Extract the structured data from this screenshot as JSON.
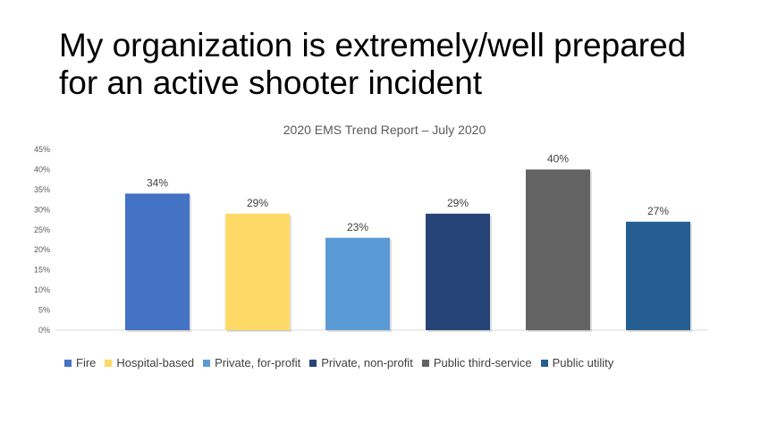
{
  "slide": {
    "title_line1": "My organization is extremely/well prepared",
    "title_line2": "for an active shooter incident"
  },
  "chart_data": {
    "type": "bar",
    "title": "2020 EMS Trend Report – July 2020",
    "categories": [
      "Fire",
      "Hospital-based",
      "Private, for-profit",
      "Private, non-profit",
      "Public third-service",
      "Public utility"
    ],
    "values": [
      34,
      29,
      23,
      29,
      40,
      27
    ],
    "data_labels": [
      "34%",
      "29%",
      "23%",
      "29%",
      "40%",
      "27%"
    ],
    "colors": [
      "#4472C4",
      "#FFD966",
      "#5B9BD5",
      "#264478",
      "#636363",
      "#255E91"
    ],
    "yticks": [
      "0%",
      "5%",
      "10%",
      "15%",
      "20%",
      "25%",
      "30%",
      "35%",
      "40%",
      "45%"
    ],
    "ylim": [
      0,
      45
    ],
    "grid": false,
    "legend_position": "bottom"
  }
}
